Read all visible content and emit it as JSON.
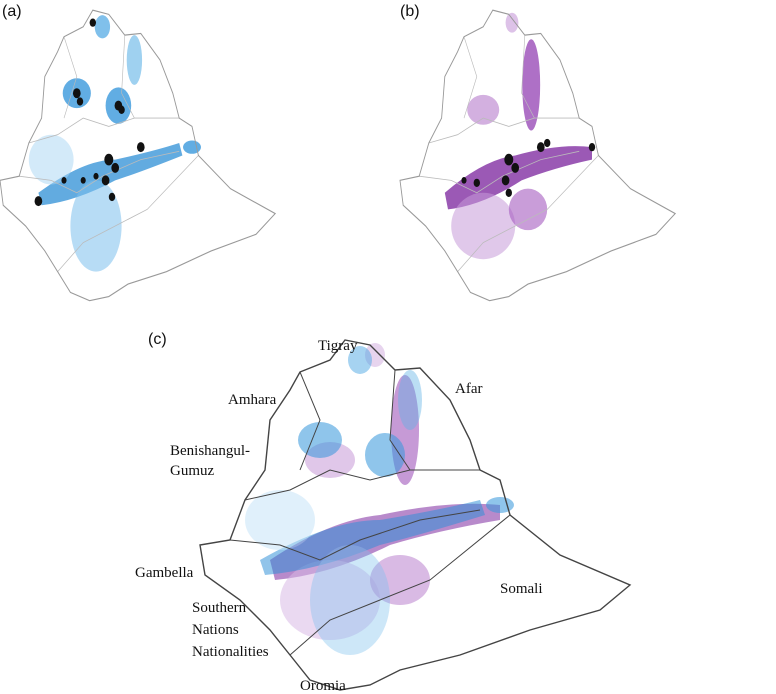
{
  "panels": [
    {
      "label": "(a)"
    },
    {
      "label": "(b)"
    },
    {
      "label": "(c)",
      "regions": [
        {
          "lines": [
            "Tigray"
          ]
        },
        {
          "lines": [
            "Afar"
          ]
        },
        {
          "lines": [
            "Amhara"
          ]
        },
        {
          "lines": [
            "Benishangul-",
            "Gumuz"
          ]
        },
        {
          "lines": [
            "Gambella"
          ]
        },
        {
          "lines": [
            "Southern",
            "Nations",
            "Nationalities"
          ]
        },
        {
          "lines": [
            "Oromia"
          ]
        },
        {
          "lines": [
            "Somali"
          ]
        }
      ]
    }
  ]
}
